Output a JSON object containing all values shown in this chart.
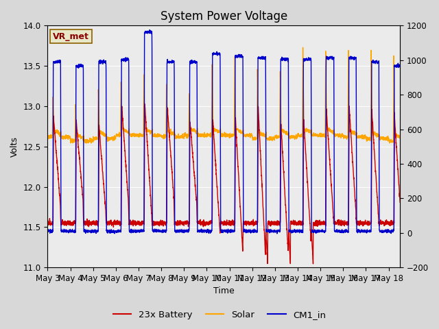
{
  "title": "System Power Voltage",
  "xlabel": "Time",
  "ylabel": "Volts",
  "ylim_left": [
    11.0,
    14.0
  ],
  "ylim_right": [
    -200,
    1200
  ],
  "yticks_left": [
    11.0,
    11.5,
    12.0,
    12.5,
    13.0,
    13.5,
    14.0
  ],
  "yticks_right": [
    -200,
    0,
    200,
    400,
    600,
    800,
    1000,
    1200
  ],
  "xtick_labels": [
    "May 3",
    "May 4",
    "May 5",
    "May 6",
    "May 7",
    "May 8",
    "May 9",
    "May 10",
    "May 11",
    "May 12",
    "May 13",
    "May 14",
    "May 15",
    "May 16",
    "May 17",
    "May 18"
  ],
  "color_battery": "#cc0000",
  "color_solar": "#ffa500",
  "color_cm1": "#0000cc",
  "linewidth": 1.0,
  "background_color": "#d8d8d8",
  "plot_bg_color": "#ebebeb",
  "annotation_text": "VR_met",
  "annotation_color": "#8b0000",
  "legend_labels": [
    "23x Battery",
    "Solar",
    "CM1_in"
  ],
  "title_fontsize": 12,
  "axis_fontsize": 9,
  "tick_fontsize": 8.5
}
